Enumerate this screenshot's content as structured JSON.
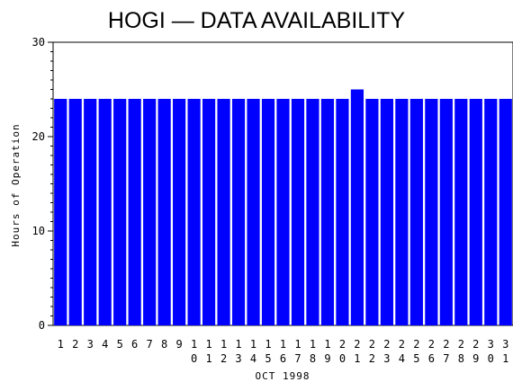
{
  "chart_data": {
    "type": "bar",
    "title": "HOGI — DATA AVAILABILITY",
    "xlabel": "OCT 1998",
    "ylabel": "Hours of Operation",
    "ylim": [
      0,
      30
    ],
    "yticks": [
      0,
      10,
      20,
      30
    ],
    "categories": [
      "1",
      "2",
      "3",
      "4",
      "5",
      "6",
      "7",
      "8",
      "9",
      "10",
      "11",
      "12",
      "13",
      "14",
      "15",
      "16",
      "17",
      "18",
      "19",
      "20",
      "21",
      "22",
      "23",
      "24",
      "25",
      "26",
      "27",
      "28",
      "29",
      "30",
      "31"
    ],
    "values": [
      24,
      24,
      24,
      24,
      24,
      24,
      24,
      24,
      24,
      24,
      24,
      24,
      24,
      24,
      24,
      24,
      24,
      24,
      24,
      24,
      25,
      24,
      24,
      24,
      24,
      24,
      24,
      24,
      24,
      24,
      24
    ],
    "bar_color": "#0000ff",
    "grid": false
  }
}
